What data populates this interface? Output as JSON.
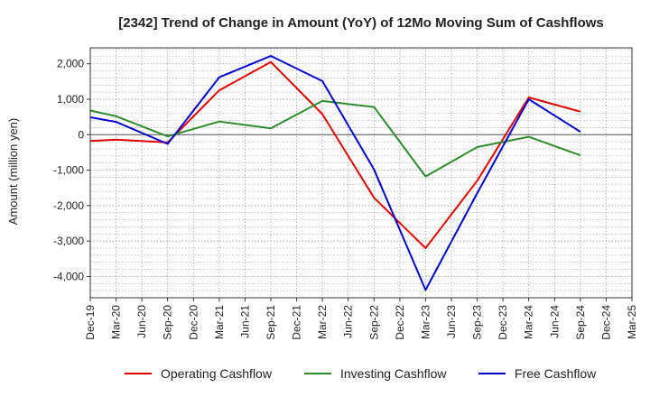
{
  "chart_data": {
    "type": "line",
    "title": "[2342]  Trend of Change in Amount (YoY) of 12Mo Moving Sum of Cashflows",
    "ylabel": "Amount (million yen)",
    "xlabel": "",
    "ylim": [
      -4600,
      2450
    ],
    "yticks": [
      2000,
      1000,
      0,
      -1000,
      -2000,
      -3000,
      -4000
    ],
    "ytick_labels": [
      "2,000",
      "1,000",
      "0",
      "-1,000",
      "-2,000",
      "-3,000",
      "-4,000"
    ],
    "categories": [
      "Dec-19",
      "Mar-20",
      "Jun-20",
      "Sep-20",
      "Dec-20",
      "Mar-21",
      "Jun-21",
      "Sep-21",
      "Dec-21",
      "Mar-22",
      "Jun-22",
      "Sep-22",
      "Dec-22",
      "Mar-23",
      "Jun-23",
      "Sep-23",
      "Dec-23",
      "Mar-24",
      "Jun-24",
      "Sep-24",
      "Dec-24",
      "Mar-25"
    ],
    "series": [
      {
        "name": "Operating Cashflow",
        "color": "#e00000",
        "values": [
          -180,
          -140,
          null,
          -220,
          null,
          1250,
          null,
          2050,
          null,
          580,
          null,
          -1780,
          null,
          -3200,
          null,
          -1300,
          null,
          1050,
          null,
          650,
          null,
          null
        ]
      },
      {
        "name": "Investing Cashflow",
        "color": "#2e8b2e",
        "values": [
          680,
          520,
          null,
          -50,
          null,
          370,
          null,
          180,
          null,
          950,
          null,
          780,
          null,
          -1180,
          null,
          -350,
          null,
          -60,
          null,
          -580,
          null,
          null
        ]
      },
      {
        "name": "Free Cashflow",
        "color": "#0000cc",
        "values": [
          490,
          360,
          null,
          -260,
          null,
          1620,
          null,
          2220,
          null,
          1510,
          null,
          -980,
          null,
          -4380,
          null,
          -1650,
          null,
          1000,
          null,
          80,
          null,
          null
        ]
      }
    ],
    "legend_position": "bottom",
    "grid": true
  }
}
